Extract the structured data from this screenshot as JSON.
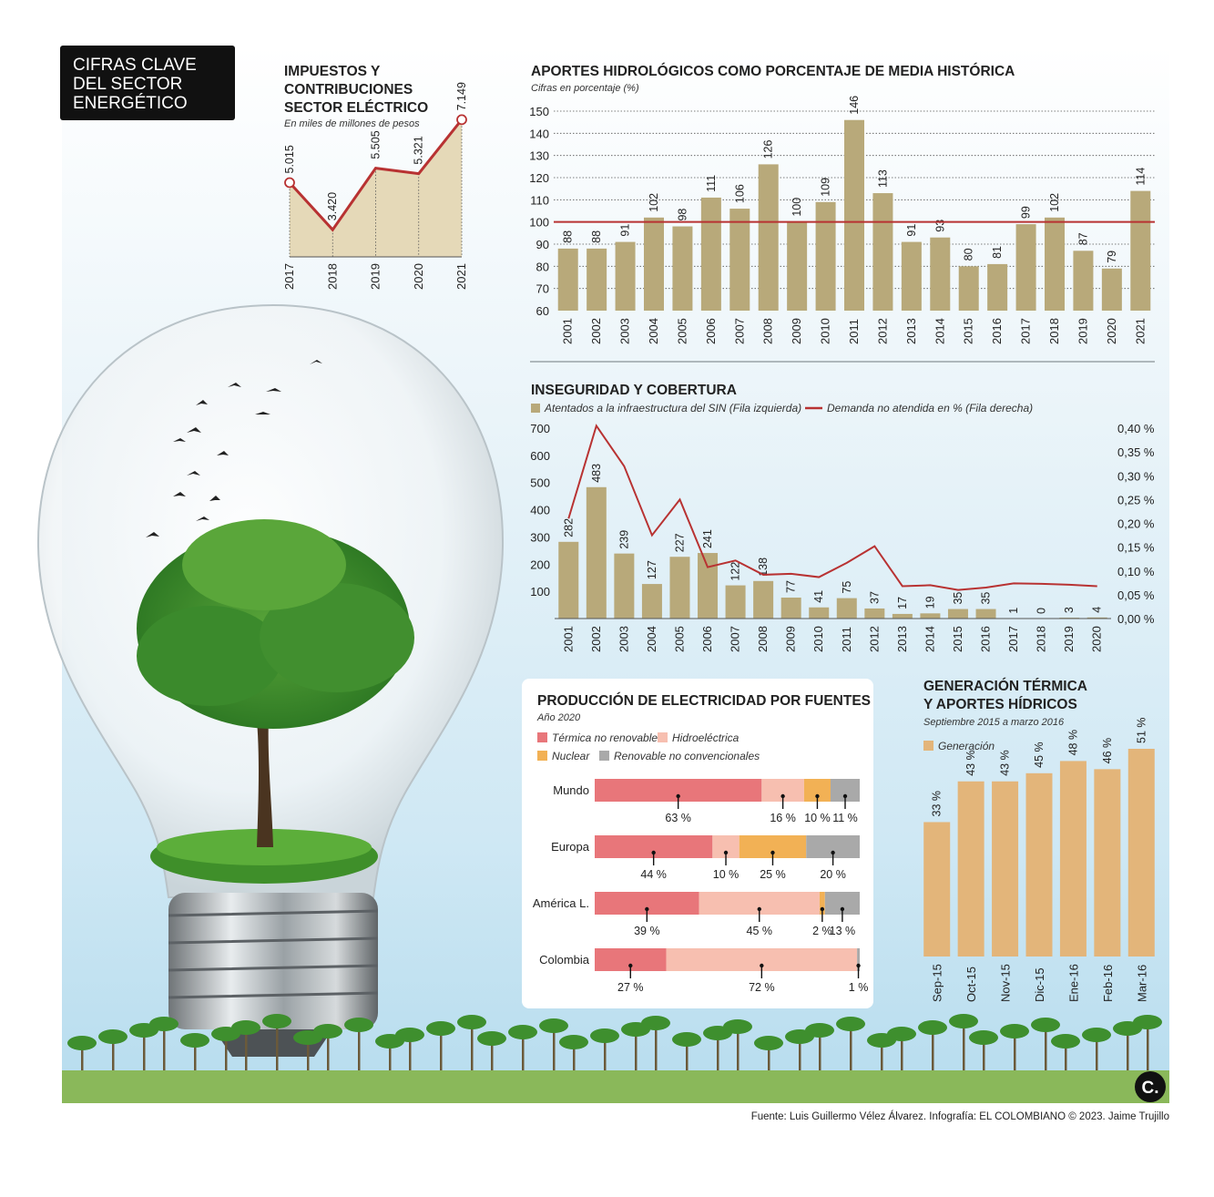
{
  "header": {
    "lines": [
      "CIFRAS CLAVE",
      "DEL SECTOR",
      "ENERGÉTICO"
    ]
  },
  "footer": {
    "source": "Fuente: Luis Guillermo Vélez Álvarez. Infografía: EL COLOMBIANO © 2023. Jaime Trujillo",
    "logo": "C."
  },
  "colors": {
    "bar": "#b8a97a",
    "line": "#b83232",
    "orange_bar": "#e3b57a",
    "termica": "#e8767a",
    "hidro": "#f7bfb0",
    "nuclear": "#f2b155",
    "renovable": "#a9a9a9"
  },
  "chart_data": [
    {
      "id": "impuestos",
      "type": "area",
      "title": [
        "IMPUESTOS Y",
        "CONTRIBUCIONES",
        "SECTOR ELÉCTRICO"
      ],
      "subtitle": "En miles de millones de pesos",
      "x": [
        "2017",
        "2018",
        "2019",
        "2020",
        "2021"
      ],
      "values": [
        5015,
        3420,
        5505,
        5321,
        7149
      ],
      "labels": [
        "5.015",
        "3.420",
        "5.505",
        "5.321",
        "7.149"
      ],
      "ylim": [
        2500,
        7500
      ]
    },
    {
      "id": "aportes",
      "type": "bar",
      "title": "APORTES HIDROLÓGICOS COMO PORCENTAJE DE MEDIA HISTÓRICA",
      "subtitle": "Cifras en porcentaje (%)",
      "categories": [
        "2001",
        "2002",
        "2003",
        "2004",
        "2005",
        "2006",
        "2007",
        "2008",
        "2009",
        "2010",
        "2011",
        "2012",
        "2013",
        "2014",
        "2015",
        "2016",
        "2017",
        "2018",
        "2019",
        "2020",
        "2021"
      ],
      "values": [
        88,
        88,
        91,
        102,
        98,
        111,
        106,
        126,
        100,
        109,
        146,
        113,
        91,
        93,
        80,
        81,
        99,
        102,
        87,
        79,
        114
      ],
      "ylim": [
        60,
        150
      ],
      "yticks": [
        60,
        70,
        80,
        90,
        100,
        110,
        120,
        130,
        140,
        150
      ],
      "reference_line": 100,
      "grid": true
    },
    {
      "id": "inseguridad",
      "type": "bar",
      "title": "INSEGURIDAD Y COBERTURA",
      "categories": [
        "2001",
        "2002",
        "2003",
        "2004",
        "2005",
        "2006",
        "2007",
        "2008",
        "2009",
        "2010",
        "2011",
        "2012",
        "2013",
        "2014",
        "2015",
        "2016",
        "2017",
        "2018",
        "2019",
        "2020"
      ],
      "series": [
        {
          "name": "Atentados a la infraestructura del SIN (Fila izquierda)",
          "type": "bar",
          "axis": "left",
          "values": [
            282,
            483,
            239,
            127,
            227,
            241,
            122,
            138,
            77,
            41,
            75,
            37,
            17,
            19,
            35,
            35,
            1,
            0,
            3,
            4
          ]
        },
        {
          "name": "Demanda no atendida en % (Fila derecha)",
          "type": "line",
          "axis": "right",
          "values": [
            0.21,
            0.405,
            0.32,
            0.175,
            0.25,
            0.108,
            0.122,
            0.092,
            0.094,
            0.087,
            0.117,
            0.152,
            0.068,
            0.07,
            0.06,
            0.065,
            0.074,
            0.073,
            0.071,
            0.068
          ]
        }
      ],
      "ylim_left": [
        0,
        700
      ],
      "yticks_left": [
        "100",
        "200",
        "300",
        "400",
        "500",
        "600",
        "700"
      ],
      "ylim_right": [
        0,
        0.4
      ],
      "yticks_right": [
        "0,00 %",
        "0,05 %",
        "0,10 %",
        "0,15 %",
        "0,20 %",
        "0,25 %",
        "0,30 %",
        "0,35 %",
        "0,40 %"
      ]
    },
    {
      "id": "produccion",
      "type": "bar",
      "stacked": true,
      "orientation": "horizontal",
      "title": "PRODUCCIÓN DE ELECTRICIDAD POR FUENTES",
      "subtitle": "Año  2020",
      "legend": [
        "Térmica no renovable",
        "Hidroeléctrica",
        "Nuclear",
        "Renovable no convencionales"
      ],
      "categories": [
        "Mundo",
        "Europa",
        "América L.",
        "Colombia"
      ],
      "series": [
        {
          "name": "Térmica no renovable",
          "values": [
            63,
            44,
            39,
            27
          ]
        },
        {
          "name": "Hidroeléctrica",
          "values": [
            16,
            10,
            45,
            72
          ]
        },
        {
          "name": "Nuclear",
          "values": [
            10,
            25,
            2,
            0
          ]
        },
        {
          "name": "Renovable no convencionales",
          "values": [
            11,
            20,
            13,
            1
          ]
        }
      ],
      "labels": [
        [
          "63 %",
          "16 %",
          "10 %",
          "11 %"
        ],
        [
          "44 %",
          "10 %",
          "25 %",
          "20 %"
        ],
        [
          "39 %",
          "45 %",
          "2 %",
          "13 %"
        ],
        [
          "27 %",
          "72 %",
          "",
          "1 %"
        ]
      ]
    },
    {
      "id": "generacion",
      "type": "bar",
      "title": [
        "GENERACIÓN TÉRMICA",
        "Y APORTES HÍDRICOS"
      ],
      "subtitle": "Septiembre 2015 a marzo 2016",
      "legend": [
        "Generación"
      ],
      "categories": [
        "Sep-15",
        "Oct-15",
        "Nov-15",
        "Dic-15",
        "Ene-16",
        "Feb-16",
        "Mar-16"
      ],
      "values": [
        33,
        43,
        43,
        45,
        48,
        46,
        51
      ],
      "labels": [
        "33 %",
        "43 %",
        "43 %",
        "45 %",
        "48 %",
        "46 %",
        "51 %"
      ],
      "ylim": [
        0,
        51
      ]
    }
  ]
}
